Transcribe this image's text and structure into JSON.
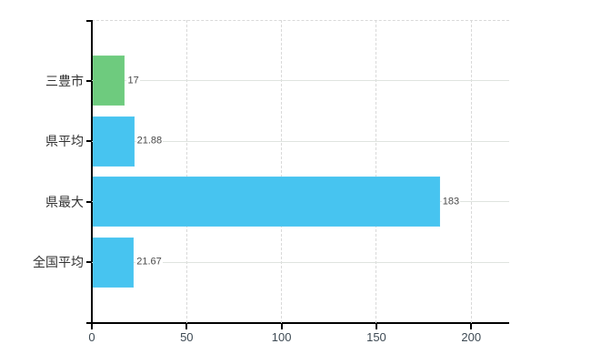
{
  "chart_data": {
    "type": "bar",
    "orientation": "horizontal",
    "title": "",
    "categories": [
      "三豊市",
      "県平均",
      "県最大",
      "全国平均"
    ],
    "values": [
      17,
      21.88,
      183,
      21.67
    ],
    "value_labels": [
      "17",
      "21.88",
      "183",
      "21.67"
    ],
    "bar_colors": [
      "#6ecb7e",
      "#47c4f0",
      "#47c4f0",
      "#47c4f0"
    ],
    "x_ticks": [
      0,
      50,
      100,
      150,
      200
    ],
    "x_tick_labels": [
      "0",
      "50",
      "100",
      "150",
      "200"
    ],
    "xlim": [
      0,
      220
    ],
    "grid": true,
    "legend": "none",
    "colors": {
      "axis": "#000000",
      "grid_dashed": "#d9d9d9",
      "grid_solid": "#dfe4df",
      "tick_label": "#3e4a54",
      "category_label": "#323232",
      "value_label": "#4a4a4a",
      "background": "#ffffff"
    }
  }
}
